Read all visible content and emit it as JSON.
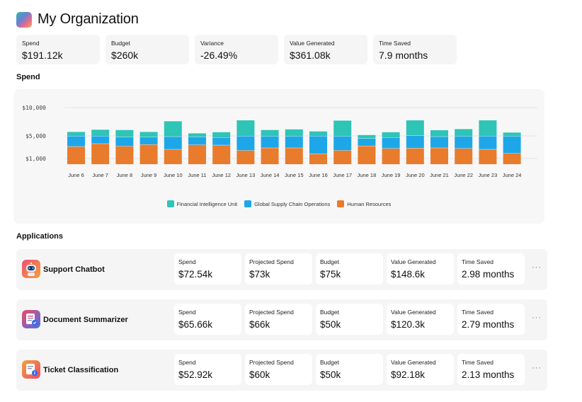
{
  "header": {
    "title": "My Organization"
  },
  "kpis": [
    {
      "label": "Spend",
      "value": "$191.12k",
      "width": 118
    },
    {
      "label": "Budget",
      "value": "$260k",
      "width": 118
    },
    {
      "label": "Variance",
      "value": "-26.49%",
      "width": 118
    },
    {
      "label": "Value Generated",
      "value": "$361.08k",
      "width": 118
    },
    {
      "label": "Time Saved",
      "value": "7.9 months",
      "width": 118
    }
  ],
  "spend_section": {
    "title": "Spend"
  },
  "applications_section": {
    "title": "Applications"
  },
  "colors": {
    "fiu": "#2ec4b6",
    "gsco": "#1ea7e8",
    "hr": "#e97b2c"
  },
  "chart_data": {
    "type": "bar",
    "stacked": true,
    "categories": [
      "June 6",
      "June 7",
      "June 8",
      "June 9",
      "June 10",
      "June 11",
      "June 12",
      "June 13",
      "June 14",
      "June 15",
      "June 16",
      "June 17",
      "June 18",
      "June 19",
      "June 20",
      "June 21",
      "June 22",
      "June 23",
      "June 24"
    ],
    "y_ticks": [
      "$1,000",
      "$5,000",
      "$10,000"
    ],
    "series": [
      {
        "name": "Human Resources",
        "color": "#e97b2c",
        "values": [
          3150,
          3650,
          3200,
          3500,
          2650,
          3450,
          3400,
          2450,
          2900,
          2900,
          1850,
          2450,
          3250,
          2800,
          2850,
          2900,
          2800,
          2650,
          1950
        ]
      },
      {
        "name": "Global Supply Chain Operations",
        "color": "#1ea7e8",
        "values": [
          1850,
          1350,
          1600,
          1300,
          2250,
          1400,
          1350,
          2550,
          2050,
          2050,
          3150,
          2500,
          1300,
          1900,
          2200,
          2000,
          2150,
          2350,
          3000
        ]
      },
      {
        "name": "Financial Intelligence Unit",
        "color": "#2ec4b6",
        "values": [
          750,
          1150,
          1300,
          950,
          2750,
          650,
          950,
          2800,
          1150,
          1250,
          850,
          2800,
          650,
          1000,
          2750,
          1150,
          1300,
          2800,
          700
        ]
      }
    ],
    "legend_placement": "bottom",
    "grid": true
  },
  "applications": [
    {
      "name": "Support Chatbot",
      "icon": "robot-icon",
      "metrics": [
        {
          "label": "Spend",
          "value": "$72.54k"
        },
        {
          "label": "Projected Spend",
          "value": "$73k"
        },
        {
          "label": "Budget",
          "value": "$75k"
        },
        {
          "label": "Value Generated",
          "value": "$148.6k"
        },
        {
          "label": "Time Saved",
          "value": "2.98 months"
        }
      ]
    },
    {
      "name": "Document Summarizer",
      "icon": "document-icon",
      "metrics": [
        {
          "label": "Spend",
          "value": "$65.66k"
        },
        {
          "label": "Projected Spend",
          "value": "$66k"
        },
        {
          "label": "Budget",
          "value": "$50k"
        },
        {
          "label": "Value Generated",
          "value": "$120.3k"
        },
        {
          "label": "Time Saved",
          "value": "2.79 months"
        }
      ]
    },
    {
      "name": "Ticket Classification",
      "icon": "ticket-icon",
      "metrics": [
        {
          "label": "Spend",
          "value": "$52.92k"
        },
        {
          "label": "Projected Spend",
          "value": "$60k"
        },
        {
          "label": "Budget",
          "value": "$50k"
        },
        {
          "label": "Value Generated",
          "value": "$92.18k"
        },
        {
          "label": "Time Saved",
          "value": "2.13 months"
        }
      ]
    }
  ],
  "more_label": "···"
}
